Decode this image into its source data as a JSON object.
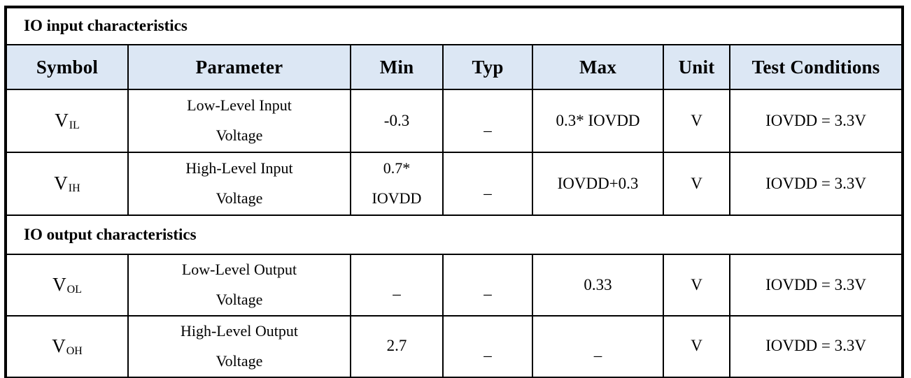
{
  "accent": {
    "header_bg": "#dce7f4",
    "border_color": "#000000"
  },
  "sections": {
    "input_title": "IO input characteristics",
    "output_title": "IO output characteristics"
  },
  "columns": [
    "Symbol",
    "Parameter",
    "Min",
    "Typ",
    "Max",
    "Unit",
    "Test Conditions"
  ],
  "input_rows": [
    {
      "symbol_base": "V",
      "symbol_sub": "IL",
      "parameter": "Low-Level Input\nVoltage",
      "min": "-0.3",
      "typ": "–",
      "max": "0.3* IOVDD",
      "unit": "V",
      "test_conditions": "IOVDD = 3.3V"
    },
    {
      "symbol_base": "V",
      "symbol_sub": "IH",
      "parameter": "High-Level Input\nVoltage",
      "min": "0.7*\nIOVDD",
      "typ": "–",
      "max": "IOVDD+0.3",
      "unit": "V",
      "test_conditions": "IOVDD = 3.3V"
    }
  ],
  "output_rows": [
    {
      "symbol_base": "V",
      "symbol_sub": "OL",
      "parameter": "Low-Level Output\nVoltage",
      "min": "–",
      "typ": "–",
      "max": "0.33",
      "unit": "V",
      "test_conditions": "IOVDD = 3.3V"
    },
    {
      "symbol_base": "V",
      "symbol_sub": "OH",
      "parameter": "High-Level Output\nVoltage",
      "min": "2.7",
      "typ": "–",
      "max": "–",
      "unit": "V",
      "test_conditions": "IOVDD = 3.3V"
    }
  ]
}
